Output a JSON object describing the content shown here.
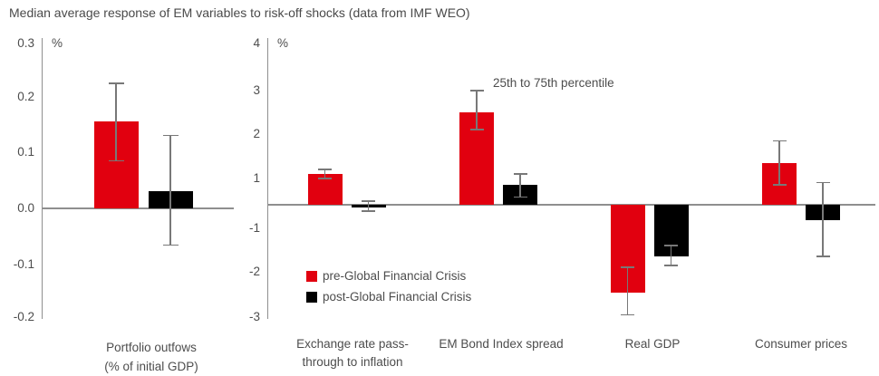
{
  "title": "Median average response of EM variables to risk-off shocks (data from IMF WEO)",
  "annotation": "25th to 75th percentile",
  "legend": {
    "items": [
      {
        "label": "pre-Global Financial Crisis",
        "color": "#e1000f"
      },
      {
        "label": "post-Global Financial Crisis",
        "color": "#000000"
      }
    ]
  },
  "colors": {
    "pre_gfc_red": "#e1000f",
    "post_gfc_black": "#000000",
    "axis_gray": "#8f8f8f",
    "error_bar_gray": "#787878",
    "text_gray": "#4d4d4d"
  },
  "chart_data": [
    {
      "type": "bar",
      "panel": "left",
      "unit_label": "%",
      "axis_ticks": [
        "0.3",
        "0.2",
        "0.1",
        "0.0",
        "-0.1",
        "-0.2"
      ],
      "ylim": [
        -0.2,
        0.3
      ],
      "grid": false,
      "legend_position": "none",
      "categories": [
        [
          "Portfolio outfows",
          "(% of initial GDP)"
        ]
      ],
      "series": [
        {
          "name": "pre-Global Financial Crisis",
          "color": "#e1000f",
          "values": [
            0.155
          ],
          "p25": [
            0.085
          ],
          "p75": [
            0.225
          ]
        },
        {
          "name": "post-Global Financial Crisis",
          "color": "#000000",
          "values": [
            0.03
          ],
          "p25": [
            -0.065
          ],
          "p75": [
            0.13
          ]
        }
      ]
    },
    {
      "type": "bar",
      "panel": "right",
      "unit_label": "%",
      "axis_ticks": [
        "4",
        "3",
        "2",
        "1",
        "-1",
        "-2",
        "-3"
      ],
      "ylim": [
        -3,
        4
      ],
      "grid": false,
      "legend_position": "bottom-left inside plot",
      "categories": [
        [
          "Exchange rate pass-",
          "through to inflation"
        ],
        [
          "EM Bond Index spread"
        ],
        [
          "Real GDP"
        ],
        [
          "Consumer prices"
        ]
      ],
      "series": [
        {
          "name": "pre-Global Financial Crisis",
          "color": "#e1000f",
          "values": [
            1.1,
            2.5,
            -2.45,
            1.35
          ],
          "p25": [
            1.0,
            2.1,
            -2.95,
            0.75
          ],
          "p75": [
            1.2,
            3.0,
            -1.9,
            1.85
          ]
        },
        {
          "name": "post-Global Financial Crisis",
          "color": "#000000",
          "values": [
            -0.13,
            0.75,
            -1.65,
            -0.65
          ],
          "p25": [
            -0.27,
            0.3,
            -1.85,
            -1.65
          ],
          "p75": [
            0.14,
            1.1,
            -1.4,
            0.85
          ]
        }
      ]
    }
  ]
}
